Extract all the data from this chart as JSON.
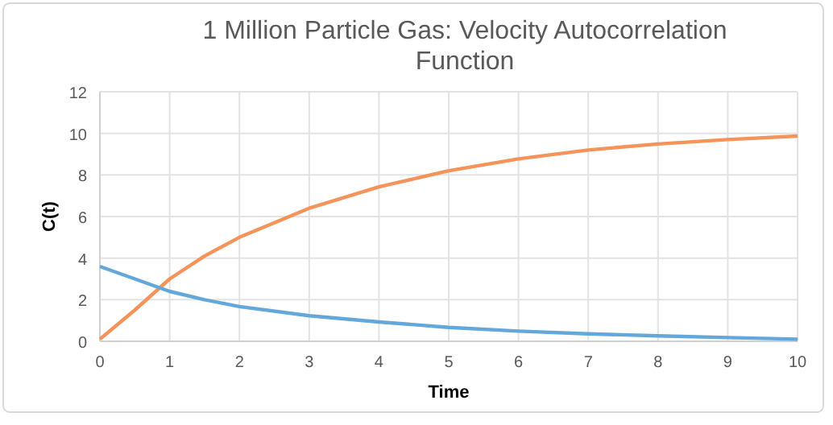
{
  "chart_data": {
    "type": "line",
    "title": "1 Million Particle Gas: Velocity Autocorrelation Function",
    "xlabel": "Time",
    "ylabel": "C(t)",
    "x": [
      0,
      0.5,
      1,
      1.5,
      2,
      3,
      4,
      5,
      6,
      7,
      8,
      9,
      10
    ],
    "series": [
      {
        "color": "#f4935a",
        "values": [
          0.1,
          1.5,
          3.0,
          4.1,
          5.0,
          6.4,
          7.43,
          8.2,
          8.77,
          9.2,
          9.49,
          9.7,
          9.87
        ]
      },
      {
        "color": "#64a8db",
        "values": [
          3.6,
          3.0,
          2.4,
          2.0,
          1.67,
          1.23,
          0.93,
          0.67,
          0.49,
          0.36,
          0.26,
          0.18,
          0.1
        ]
      }
    ],
    "xlim": [
      0,
      10
    ],
    "xticks": [
      0,
      1,
      2,
      3,
      4,
      5,
      6,
      7,
      8,
      9,
      10
    ],
    "ylim": [
      0,
      12
    ],
    "yticks": [
      0,
      2,
      4,
      6,
      8,
      10,
      12
    ],
    "grid": true,
    "marker": "none",
    "line_style": "solid"
  }
}
